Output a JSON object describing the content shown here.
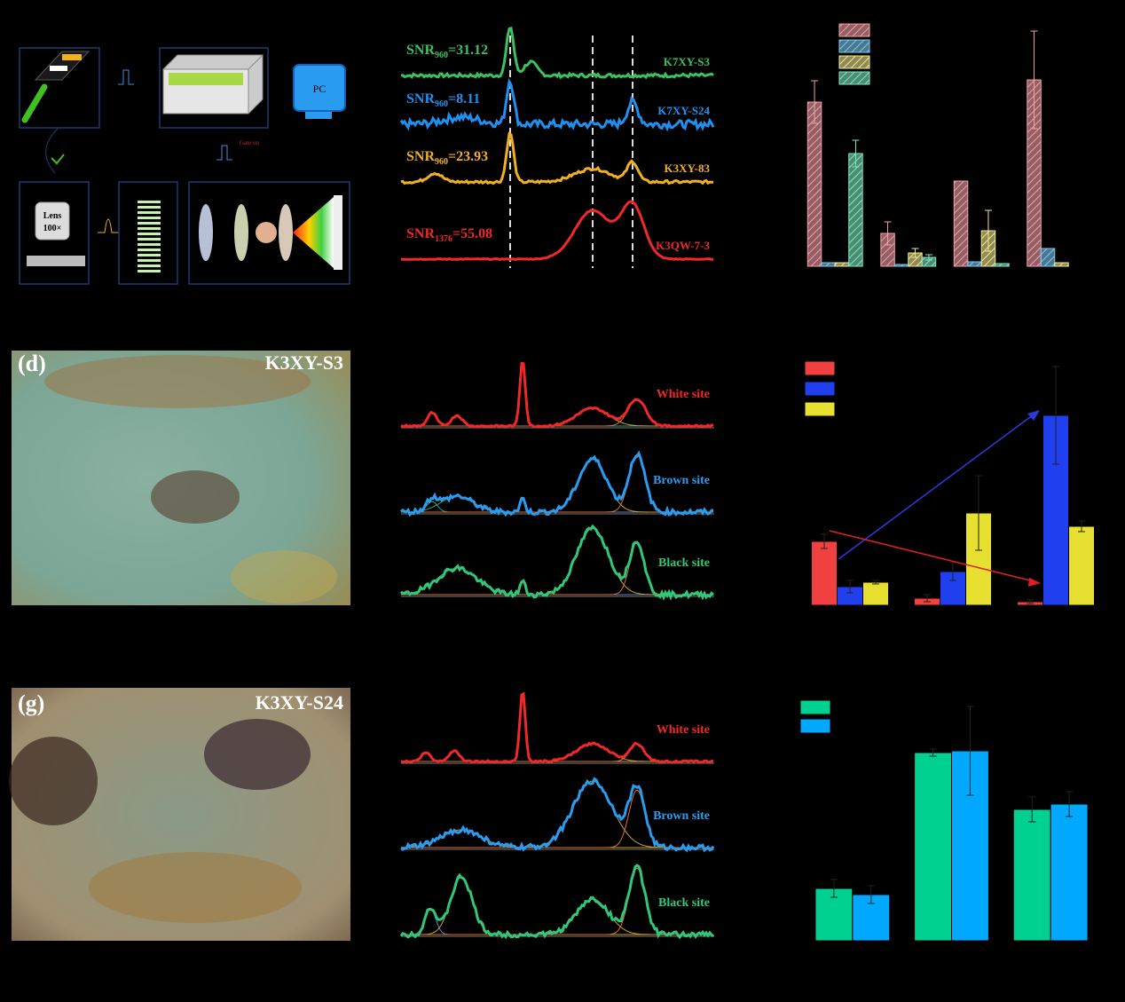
{
  "schematic": {
    "lens": "Lens",
    "mag": "100×",
    "pc": "PC",
    "gate": "Gate on"
  },
  "spectra_b": [
    {
      "snr": "SNR",
      "sub": "960",
      "val": "=31.12",
      "sample": "K7XY-S3",
      "color": "#3cc060"
    },
    {
      "snr": "SNR",
      "sub": "960",
      "val": "=8.11",
      "sample": "K7XY-S24",
      "color": "#2090f0"
    },
    {
      "snr": "SNR",
      "sub": "960",
      "val": "=23.93",
      "sample": "K3XY-83",
      "color": "#f0b020"
    },
    {
      "snr": "SNR",
      "sub": "1376",
      "val": "=55.08",
      "sample": "K3QW-7-3",
      "color": "#f02828"
    }
  ],
  "photo_d": {
    "label": "(d)",
    "sample": "K3XY-S3"
  },
  "photo_g": {
    "label": "(g)",
    "sample": "K3XY-S24"
  },
  "spectra_e": [
    {
      "label": "White site",
      "color": "#f02828"
    },
    {
      "label": "Brown site",
      "color": "#2a9cf0"
    },
    {
      "label": "Black site",
      "color": "#30c878"
    }
  ],
  "spectra_h": [
    {
      "label": "White site",
      "color": "#f02828"
    },
    {
      "label": "Brown site",
      "color": "#2a9cf0"
    },
    {
      "label": "Black site",
      "color": "#30c878"
    }
  ],
  "chart_data": [
    {
      "type": "bar",
      "hatch": true,
      "categories": [
        null,
        null,
        null,
        null
      ],
      "ylim": [
        0,
        270
      ],
      "series": [
        {
          "color": "#f4a0a8",
          "values": [
            185,
            37,
            96,
            210
          ],
          "errors": [
            24,
            13,
            0,
            55
          ]
        },
        {
          "color": "#7cc8f0",
          "values": [
            4,
            2,
            5,
            20
          ],
          "errors": [
            0,
            0,
            0,
            0
          ]
        },
        {
          "color": "#f0e890",
          "values": [
            4,
            15,
            40,
            4
          ],
          "errors": [
            0,
            5,
            23,
            0
          ]
        },
        {
          "color": "#80e8c0",
          "values": [
            127,
            10,
            3,
            0
          ],
          "errors": [
            15,
            3,
            0,
            0
          ]
        }
      ]
    },
    {
      "type": "bar",
      "hatch": false,
      "categories": [
        null,
        null,
        null
      ],
      "ylim": [
        0,
        214
      ],
      "series": [
        {
          "color": "#f04040",
          "values": [
            72,
            8,
            4
          ],
          "errors": [
            8,
            4,
            2
          ]
        },
        {
          "color": "#2040f0",
          "values": [
            21,
            38,
            214
          ],
          "errors": [
            7,
            10,
            55
          ]
        },
        {
          "color": "#e8e030",
          "values": [
            26,
            104,
            89
          ],
          "errors": [
            2,
            42,
            6
          ]
        }
      ]
    },
    {
      "type": "bar",
      "hatch": false,
      "categories": [
        null,
        null,
        null
      ],
      "ylim": [
        0,
        214
      ],
      "series": [
        {
          "color": "#00d090",
          "values": [
            59,
            212,
            148
          ],
          "errors": [
            10,
            4,
            14
          ]
        },
        {
          "color": "#00a8ff",
          "values": [
            52,
            214,
            154
          ],
          "errors": [
            10,
            50,
            14
          ]
        }
      ]
    }
  ]
}
